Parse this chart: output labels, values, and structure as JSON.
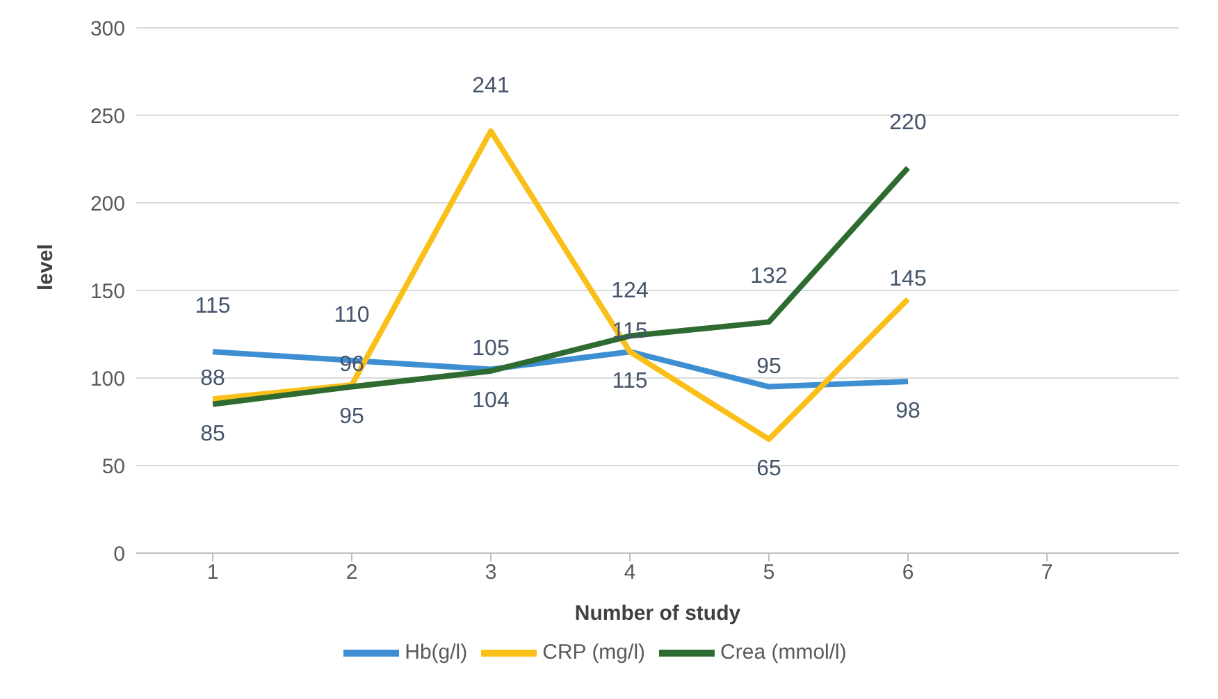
{
  "chart_data": {
    "type": "line",
    "xlabel": "Number of study",
    "ylabel": "level",
    "categories": [
      "1",
      "2",
      "3",
      "4",
      "5",
      "6",
      "7"
    ],
    "series": [
      {
        "name": "Hb(g/l)",
        "color": "#3d8fd1",
        "values": [
          115,
          110,
          105,
          115,
          95,
          98,
          null
        ]
      },
      {
        "name": "CRP (mg/l)",
        "color": "#fbbf1a",
        "values": [
          88,
          96,
          241,
          115,
          65,
          145,
          null
        ]
      },
      {
        "name": "Crea (mmol/l)",
        "color": "#2e6b30",
        "values": [
          85,
          95,
          104,
          124,
          132,
          220,
          null
        ]
      }
    ],
    "ylim": [
      0,
      300
    ],
    "yticks": [
      0,
      50,
      100,
      150,
      200,
      250,
      300
    ],
    "grid": "y",
    "legend": "bottom",
    "marker": "none",
    "line_style": "solid",
    "data_labels": true
  }
}
